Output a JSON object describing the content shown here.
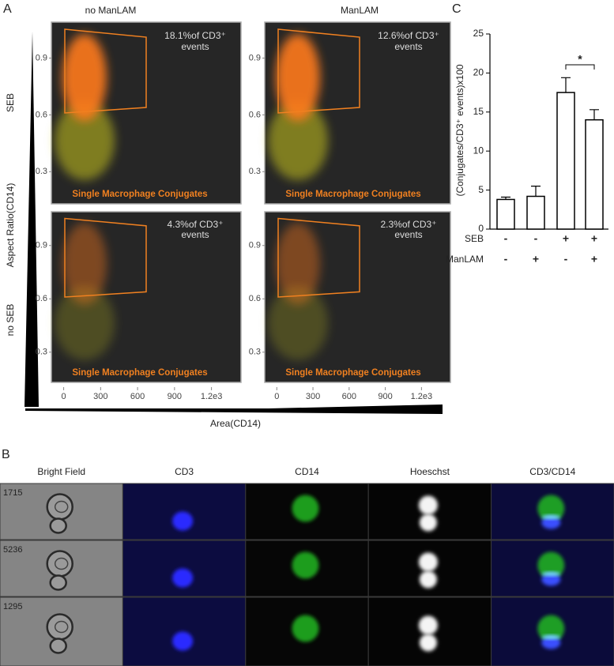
{
  "panel_a": {
    "letter": "A",
    "columns": [
      "no ManLAM",
      "ManLAM"
    ],
    "rows": [
      "SEB",
      "no SEB"
    ],
    "ylabel": "Aspect Ratio(CD14)",
    "xlabel": "Area(CD14)",
    "xlim": [
      -100,
      1440
    ],
    "ylim": [
      0.13,
      1.09
    ],
    "xticks": [
      0,
      300,
      600,
      900,
      {
        "value": 1200,
        "label": "1.2e3"
      }
    ],
    "yticks": [
      0.3,
      0.6,
      0.9
    ],
    "gate_label": "Single Macrophage Conjugates",
    "plots": [
      {
        "annotation": [
          "18.1%of CD3⁺",
          "events"
        ]
      },
      {
        "annotation": [
          "12.6%of CD3⁺",
          "events"
        ]
      },
      {
        "annotation": [
          "4.3%of CD3⁺",
          "events"
        ]
      },
      {
        "annotation": [
          "2.3%of CD3⁺",
          "events"
        ]
      }
    ]
  },
  "chart_data": {
    "type": "bar",
    "panel_label": "C",
    "ylabel": "(Conjugates/CD3⁺ events)x100",
    "values": [
      3.8,
      4.2,
      17.5,
      14.0
    ],
    "errors": [
      0.3,
      1.3,
      1.9,
      1.3
    ],
    "color": "#ffffff",
    "ylim": [
      0,
      25
    ],
    "yticks": [
      0,
      5,
      10,
      15,
      20,
      25
    ],
    "significance": "*",
    "conditions": [
      {
        "name": "SEB",
        "signs": [
          "-",
          "-",
          "+",
          "+"
        ]
      },
      {
        "name": "ManLAM",
        "signs": [
          "-",
          "+",
          "-",
          "+"
        ]
      }
    ]
  },
  "panel_b": {
    "letter": "B",
    "columns": [
      "Bright Field",
      "CD3",
      "CD14",
      "Hoeschst",
      "CD3/CD14"
    ],
    "rows": [
      "1715",
      "5236",
      "1295"
    ]
  }
}
